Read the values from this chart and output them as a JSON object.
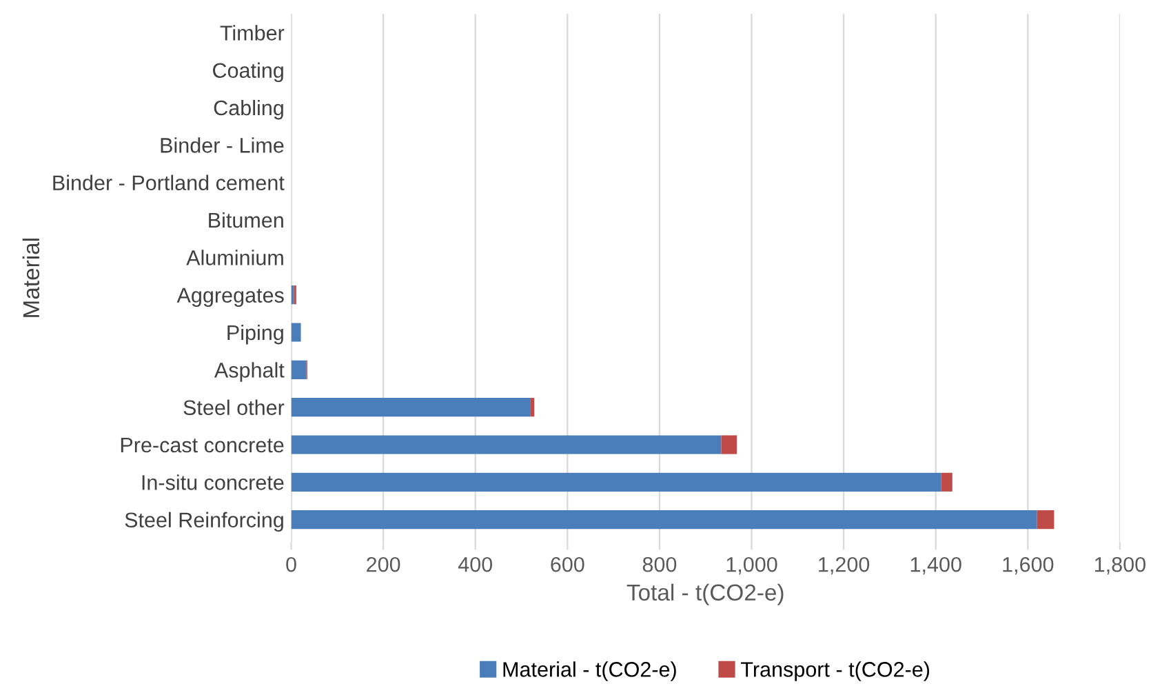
{
  "chart_data": {
    "type": "bar",
    "orientation": "horizontal",
    "stacked": true,
    "categories": [
      "Timber",
      "Coating",
      "Cabling",
      "Binder - Lime",
      "Binder - Portland cement",
      "Bitumen",
      "Aluminium",
      "Aggregates",
      "Piping",
      "Asphalt",
      "Steel other",
      "Pre-cast concrete",
      "In-situ concrete",
      "Steel Reinforcing"
    ],
    "series": [
      {
        "name": "Material - t(CO2-e)",
        "color": "#4a7ebb",
        "values": [
          0,
          0,
          0,
          0,
          0,
          0,
          0,
          6,
          21,
          33,
          520,
          934,
          1412,
          1620
        ]
      },
      {
        "name": "Transport - t(CO2-e)",
        "color": "#be4b48",
        "values": [
          0,
          0,
          0,
          0,
          0,
          0,
          0,
          5,
          null,
          2,
          8,
          34,
          24,
          37
        ]
      }
    ],
    "xlabel": "Total - t(CO2-e)",
    "ylabel": "Material",
    "xlim": [
      0,
      1800
    ],
    "xticks": [
      0,
      200,
      400,
      600,
      {
        "value": 800,
        "label": "800"
      },
      {
        "value": 1000,
        "label": "1,000"
      },
      {
        "value": 1200,
        "label": "1,200"
      },
      {
        "value": 1400,
        "label": "1,400"
      },
      {
        "value": 1600,
        "label": "1,600"
      },
      {
        "value": 1800,
        "label": "1,800"
      }
    ],
    "grid": "x",
    "legend": "bottom"
  }
}
